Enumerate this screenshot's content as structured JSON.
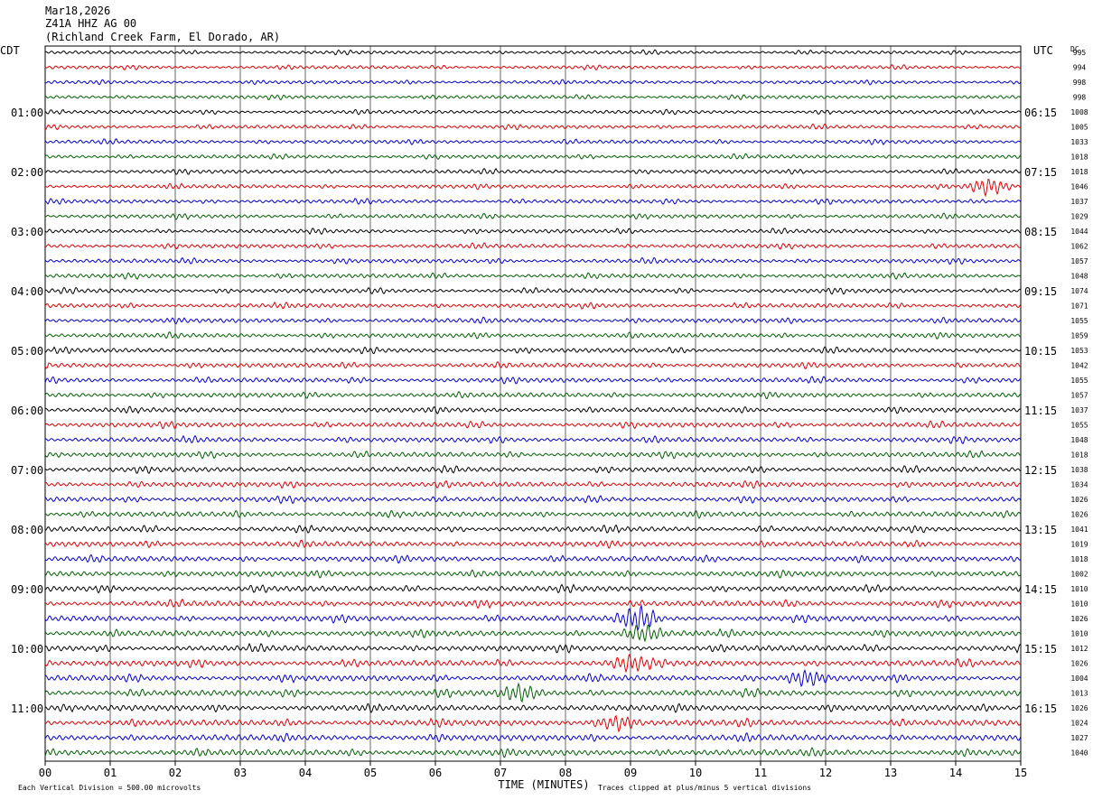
{
  "header": {
    "date": "Mar18,2026",
    "station": "Z41A HHZ AG 00",
    "location": "(Richland Creek Farm, El Dorado, AR)"
  },
  "chart_data": {
    "type": "helicorder",
    "left_axis_label": "CDT",
    "right_axis_label": "UTC",
    "dc_label": "DC",
    "left_hour_labels": [
      "01:00",
      "02:00",
      "03:00",
      "04:00",
      "05:00",
      "06:00",
      "07:00",
      "08:00",
      "09:00",
      "10:00",
      "11:00"
    ],
    "right_hour_labels": [
      "06:15",
      "07:15",
      "08:15",
      "09:15",
      "10:15",
      "11:15",
      "12:15",
      "13:15",
      "14:15",
      "15:15",
      "16:15"
    ],
    "dc_offsets": [
      995,
      994,
      998,
      998,
      1008,
      1005,
      1033,
      1018,
      1018,
      1046,
      1037,
      1029,
      1044,
      1062,
      1057,
      1048,
      1074,
      1071,
      1055,
      1059,
      1053,
      1042,
      1055,
      1057,
      1037,
      1055,
      1048,
      1018,
      1038,
      1034,
      1026,
      1026,
      1041,
      1019,
      1018,
      1002,
      1010,
      1010,
      1026,
      1010,
      1012,
      1026,
      1004,
      1013,
      1026,
      1024,
      1027,
      1040
    ],
    "trace_colors": [
      "#000000",
      "#e00000",
      "#0000d0",
      "#006000"
    ],
    "x": [
      "00",
      "01",
      "02",
      "03",
      "04",
      "05",
      "06",
      "07",
      "08",
      "09",
      "10",
      "11",
      "12",
      "13",
      "14",
      "15"
    ],
    "xlabel": "TIME (MINUTES)",
    "xlim": [
      0,
      15
    ],
    "rows_per_hour": 4,
    "minutes_per_row": 15,
    "grid": true,
    "scale_note": "Each Vertical Division =  500.00 microvolts",
    "clip_note": "Traces clipped at plus/minus 5 vertical divisions",
    "events": [
      {
        "row": 9,
        "minute": 14.5,
        "amplitude": 1.6
      },
      {
        "row": 38,
        "minute": 9.1,
        "amplitude": 2.2
      },
      {
        "row": 39,
        "minute": 9.2,
        "amplitude": 1.5
      },
      {
        "row": 41,
        "minute": 9.0,
        "amplitude": 1.5
      },
      {
        "row": 42,
        "minute": 11.7,
        "amplitude": 1.4
      },
      {
        "row": 43,
        "minute": 7.3,
        "amplitude": 1.5
      },
      {
        "row": 45,
        "minute": 8.8,
        "amplitude": 1.4
      }
    ]
  }
}
